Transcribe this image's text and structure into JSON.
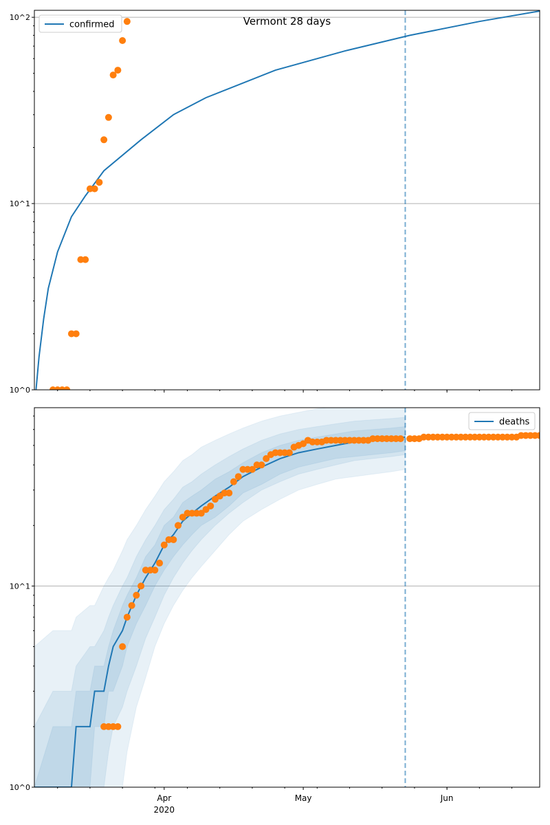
{
  "chart_data": [
    {
      "type": "line",
      "title": "Vermont 28 days",
      "yscale": "log",
      "ylim": [
        1,
        109
      ],
      "xlim": [
        "2020-03-04",
        "2020-06-21"
      ],
      "yticks": [
        {
          "value": 1,
          "label": "10^0"
        },
        {
          "value": 10,
          "label": "10^1"
        },
        {
          "value": 100,
          "label": "10^2"
        }
      ],
      "grid": "horizontal-major",
      "legend": {
        "placement": "top-left",
        "entries": [
          "confirmed"
        ]
      },
      "vline_date": "2020-05-23",
      "model_line": {
        "name": "confirmed",
        "dates": [
          "2020-03-04",
          "2020-03-05",
          "2020-03-06",
          "2020-03-07",
          "2020-03-09",
          "2020-03-12",
          "2020-03-15",
          "2020-03-19",
          "2020-03-27",
          "2020-04-03",
          "2020-04-10",
          "2020-04-25",
          "2020-05-10",
          "2020-05-24",
          "2020-06-08",
          "2020-06-21"
        ],
        "values": [
          0.8,
          1.5,
          2.4,
          3.5,
          5.5,
          8.5,
          11,
          15,
          22,
          30,
          37,
          52,
          66,
          80,
          95,
          108
        ]
      },
      "observed": {
        "name": "confirmed observed",
        "start": "2020-03-08",
        "values": [
          1,
          1,
          1,
          1,
          2,
          2,
          5,
          5,
          12,
          12,
          13,
          22,
          29,
          49,
          52,
          75,
          95
        ]
      }
    },
    {
      "type": "line",
      "title": "",
      "yscale": "log",
      "ylim": [
        1,
        77
      ],
      "xlim": [
        "2020-03-04",
        "2020-06-21"
      ],
      "yticks": [
        {
          "value": 1,
          "label": "10^0"
        },
        {
          "value": 10,
          "label": "10^1"
        }
      ],
      "xticks": [
        {
          "date": "2020-04-01",
          "label": "Apr",
          "sublabel": "2020"
        },
        {
          "date": "2020-05-01",
          "label": "May",
          "sublabel": ""
        },
        {
          "date": "2020-06-01",
          "label": "Jun",
          "sublabel": ""
        }
      ],
      "grid": "horizontal-major",
      "legend": {
        "placement": "top-right",
        "entries": [
          "deaths"
        ]
      },
      "vline_date": "2020-05-23",
      "model": {
        "dates": [
          "2020-03-04",
          "2020-03-08",
          "2020-03-12",
          "2020-03-13",
          "2020-03-16",
          "2020-03-17",
          "2020-03-19",
          "2020-03-20",
          "2020-03-21",
          "2020-03-23",
          "2020-03-24",
          "2020-03-26",
          "2020-03-28",
          "2020-03-30",
          "2020-04-01",
          "2020-04-03",
          "2020-04-05",
          "2020-04-07",
          "2020-04-09",
          "2020-04-12",
          "2020-04-15",
          "2020-04-18",
          "2020-04-22",
          "2020-04-26",
          "2020-04-30",
          "2020-05-04",
          "2020-05-08",
          "2020-05-12",
          "2020-05-16",
          "2020-05-20",
          "2020-05-23"
        ],
        "median": [
          1,
          1,
          1,
          2,
          2,
          3,
          3,
          4,
          5,
          6,
          7,
          9,
          11,
          13,
          16,
          18,
          21,
          23,
          25,
          28,
          31,
          35,
          39,
          43,
          46,
          48,
          50,
          52,
          53,
          54,
          55
        ],
        "bands": [
          {
            "name": "outer",
            "upper": [
              5,
              6,
              6,
              7,
              8,
              8,
              10,
              11,
              12,
              15,
              17,
              20,
              24,
              28,
              33,
              37,
              42,
              45,
              49,
              53,
              57,
              61,
              66,
              70,
              73,
              76,
              78,
              80,
              82,
              83,
              84
            ],
            "lower": [
              0.7,
              0.7,
              0.7,
              0.7,
              0.7,
              0.7,
              0.7,
              0.7,
              0.7,
              1,
              1.5,
              2.5,
              3.5,
              5,
              6.5,
              8,
              9.5,
              11,
              12.5,
              15,
              18,
              21,
              24,
              27,
              30,
              32,
              34,
              35,
              36,
              37,
              38
            ]
          },
          {
            "name": "middle",
            "upper": [
              2,
              3,
              3,
              4,
              5,
              5,
              6,
              7,
              8,
              10,
              11,
              14,
              17,
              20,
              24,
              27,
              31,
              33,
              36,
              40,
              44,
              48,
              53,
              57,
              60,
              62,
              64,
              66,
              67,
              68,
              69
            ],
            "lower": [
              0.7,
              0.7,
              0.7,
              0.7,
              0.7,
              0.7,
              1,
              1.5,
              2,
              2.5,
              3,
              4,
              5.5,
              7,
              9,
              11,
              13,
              15,
              17,
              20,
              23,
              26,
              30,
              33,
              36,
              38,
              40,
              42,
              43,
              44,
              45
            ]
          },
          {
            "name": "inner",
            "upper": [
              1,
              2,
              2,
              3,
              3,
              4,
              4,
              5,
              6,
              8,
              9,
              11,
              14,
              16,
              20,
              22,
              26,
              28,
              30,
              34,
              37,
              41,
              46,
              50,
              53,
              55,
              57,
              59,
              60,
              61,
              62
            ],
            "lower": [
              0.7,
              0.7,
              0.7,
              1,
              1,
              2,
              2,
              3,
              3,
              4,
              5,
              6.5,
              8,
              10,
              12,
              14,
              16,
              18,
              20,
              22,
              25,
              29,
              32,
              36,
              39,
              41,
              43,
              44,
              45,
              46,
              47
            ]
          }
        ]
      },
      "observed": {
        "name": "deaths observed",
        "start": "2020-03-19",
        "values": [
          2,
          2,
          2,
          2,
          5,
          7,
          8,
          9,
          10,
          12,
          12,
          12,
          13,
          16,
          17,
          17,
          20,
          22,
          23,
          23,
          23,
          23,
          24,
          25,
          27,
          28,
          29,
          29,
          33,
          35,
          38,
          38,
          38,
          40,
          40,
          43,
          45,
          46,
          46,
          46,
          46,
          49,
          50,
          51,
          53,
          52,
          52,
          52,
          53,
          53,
          53,
          53,
          53,
          53,
          53,
          53,
          53,
          53,
          54,
          54,
          54,
          54,
          54,
          54,
          54,
          null,
          54,
          54,
          54,
          55,
          55,
          55,
          55,
          55,
          55,
          55,
          55,
          55,
          55,
          55,
          55,
          55,
          55,
          55,
          55,
          55,
          55,
          55,
          55,
          55,
          56,
          56,
          56,
          56,
          56
        ]
      }
    }
  ],
  "colors": {
    "model": "#1f77b4",
    "observed": "#ff7f0e",
    "grid": "#b0b0b0"
  }
}
